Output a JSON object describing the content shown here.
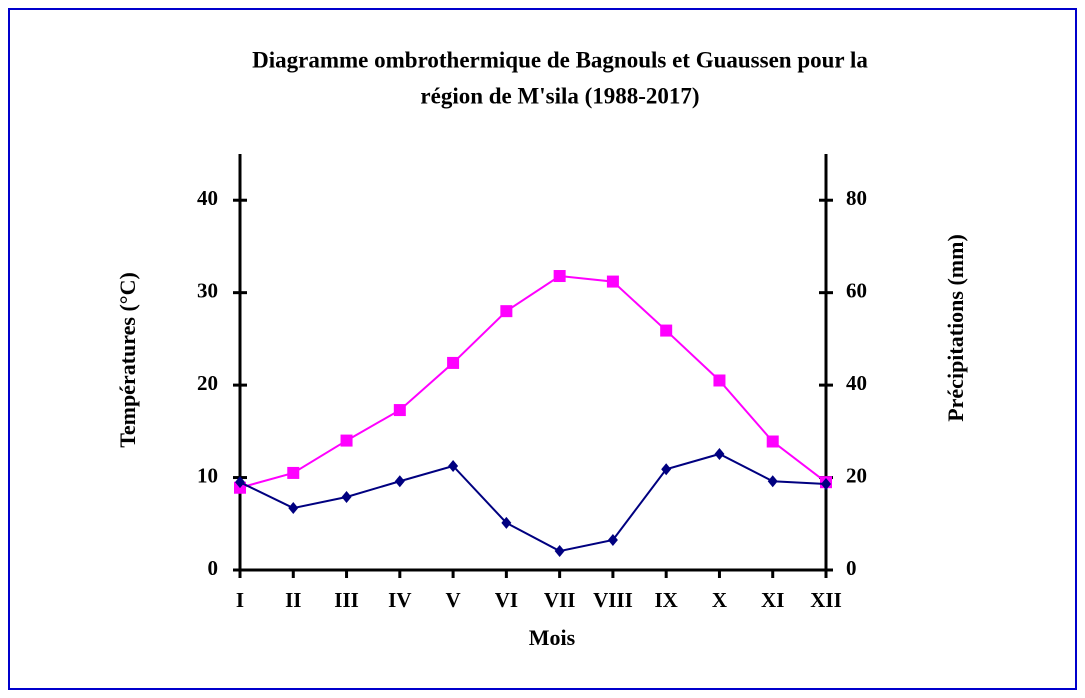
{
  "chart_data": {
    "type": "line",
    "title": [
      "Diagramme ombrothermique de Bagnouls et Guaussen pour la",
      "région de M'sila (1988-2017)"
    ],
    "xlabel": "Mois",
    "ylabel": "Températures (°C)",
    "y2label": "Précipitations (mm)",
    "categories": [
      "I",
      "II",
      "III",
      "IV",
      "V",
      "VI",
      "VII",
      "VIII",
      "IX",
      "X",
      "XI",
      "XII"
    ],
    "series": [
      {
        "color": "#ff00ff",
        "marker": "square",
        "axis": "y",
        "values": [
          8.9,
          10.5,
          14.0,
          17.3,
          22.4,
          28.0,
          31.8,
          31.2,
          25.9,
          20.5,
          13.9,
          9.5
        ]
      },
      {
        "color": "#000080",
        "marker": "diamond",
        "axis": "y2",
        "values": [
          19.0,
          13.4,
          15.8,
          19.2,
          22.5,
          10.2,
          4.1,
          6.5,
          21.8,
          25.1,
          19.2,
          18.6
        ]
      }
    ],
    "ylim": [
      0,
      45
    ],
    "yticks": [
      0,
      10,
      20,
      30,
      40
    ],
    "y2lim": [
      0,
      90
    ],
    "y2ticks": [
      0,
      20,
      40,
      60,
      80
    ]
  }
}
